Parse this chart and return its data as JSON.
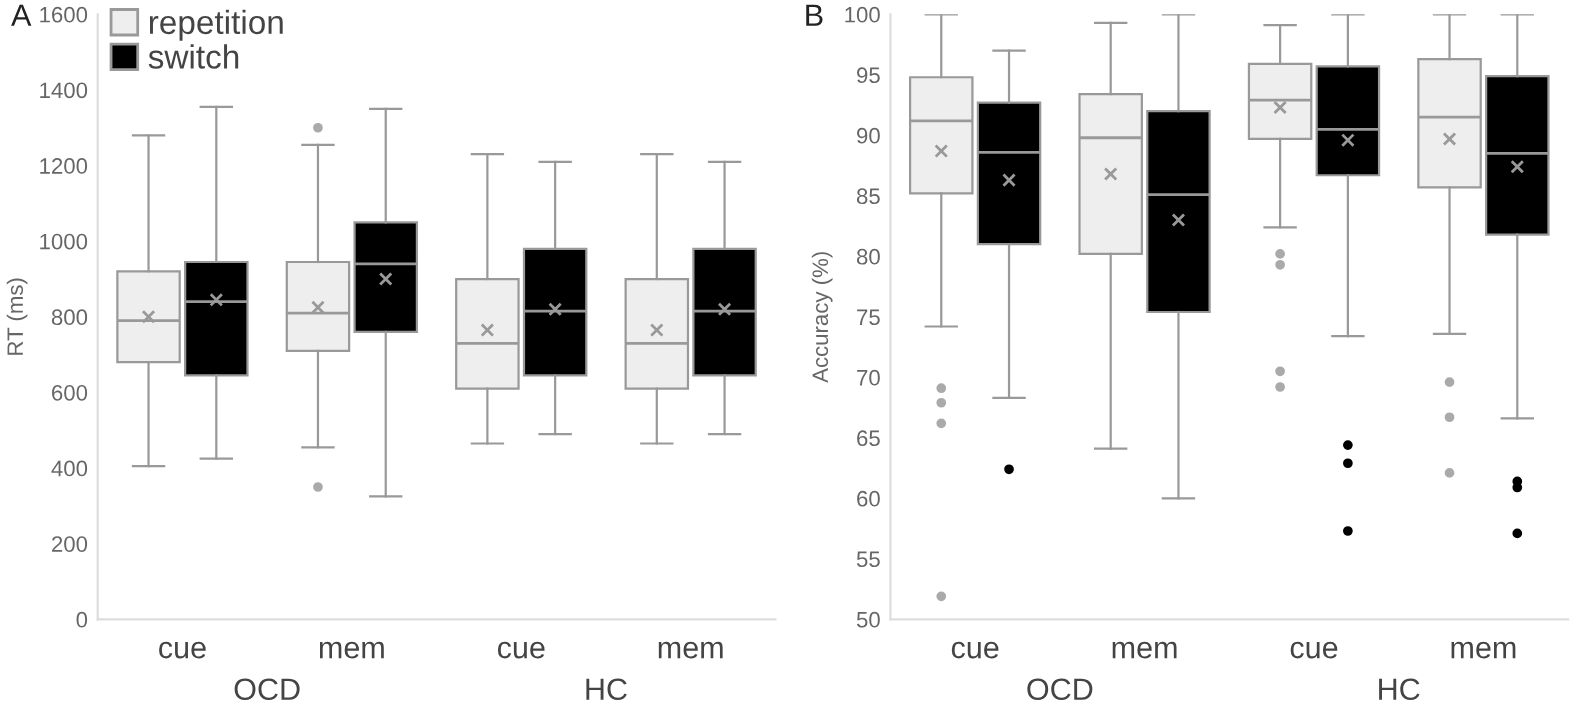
{
  "chart_data": [
    {
      "type": "box",
      "ylabel": "RT (ms)",
      "categories": [
        "cue",
        "mem",
        "cue",
        "mem"
      ],
      "ylim": [
        0,
        1600
      ],
      "yticks": [
        0,
        200,
        400,
        600,
        800,
        1000,
        1200,
        1400,
        1600
      ],
      "legend": "top left",
      "grid": false,
      "annotations": [
        "A",
        "OCD",
        "HC"
      ],
      "series": [
        {
          "name": "repetition",
          "color": "#eeeeee",
          "boxes": [
            {
              "low": 405,
              "q1": 680,
              "median": 790,
              "q3": 920,
              "high": 1280,
              "mean": 800
            },
            {
              "low": 455,
              "q1": 710,
              "median": 810,
              "q3": 945,
              "high": 1255,
              "mean": 825,
              "outliers": [
                1300,
                350
              ]
            },
            {
              "low": 465,
              "q1": 610,
              "median": 730,
              "q3": 900,
              "high": 1230,
              "mean": 765
            },
            {
              "low": 465,
              "q1": 610,
              "median": 730,
              "q3": 900,
              "high": 1230,
              "mean": 765
            }
          ]
        },
        {
          "name": "switch",
          "color": "#000000",
          "boxes": [
            {
              "low": 425,
              "q1": 645,
              "median": 840,
              "q3": 945,
              "high": 1355,
              "mean": 845
            },
            {
              "low": 325,
              "q1": 760,
              "median": 940,
              "q3": 1050,
              "high": 1350,
              "mean": 900
            },
            {
              "low": 490,
              "q1": 645,
              "median": 815,
              "q3": 980,
              "high": 1210,
              "mean": 820
            },
            {
              "low": 490,
              "q1": 645,
              "median": 815,
              "q3": 980,
              "high": 1210,
              "mean": 820
            }
          ]
        }
      ]
    },
    {
      "type": "box",
      "ylabel": "Accuracy (%)",
      "categories": [
        "cue",
        "mem",
        "cue",
        "mem"
      ],
      "ylim": [
        50,
        100
      ],
      "yticks": [
        50,
        55,
        60,
        65,
        70,
        75,
        80,
        85,
        90,
        95,
        100
      ],
      "grid": false,
      "annotations": [
        "B",
        "OCD",
        "HC"
      ],
      "series": [
        {
          "color": "#eeeeee",
          "boxes": [
            {
              "low": 74.2,
              "q1": 85.2,
              "median": 91.2,
              "q3": 94.8,
              "high": 100,
              "mean": 88.7,
              "outliers": [
                69.1,
                67.9,
                66.2,
                51.9
              ]
            },
            {
              "low": 64.1,
              "q1": 80.2,
              "median": 89.8,
              "q3": 93.4,
              "high": 99.3,
              "mean": 86.8
            },
            {
              "low": 82.4,
              "q1": 89.7,
              "median": 92.9,
              "q3": 95.9,
              "high": 99.1,
              "mean": 92.3,
              "outliers": [
                80.2,
                79.3,
                70.5,
                69.2
              ]
            },
            {
              "low": 73.6,
              "q1": 85.7,
              "median": 91.5,
              "q3": 96.3,
              "high": 100,
              "mean": 89.7,
              "outliers": [
                69.6,
                66.7,
                62.1
              ]
            }
          ]
        },
        {
          "color": "#000000",
          "boxes": [
            {
              "low": 68.3,
              "q1": 81.0,
              "median": 88.6,
              "q3": 92.7,
              "high": 97.0,
              "mean": 86.3,
              "outliers": [
                62.4
              ]
            },
            {
              "low": 60.0,
              "q1": 75.4,
              "median": 85.1,
              "q3": 92.0,
              "high": 100,
              "mean": 83.0
            },
            {
              "low": 73.4,
              "q1": 86.7,
              "median": 90.5,
              "q3": 95.7,
              "high": 100,
              "mean": 89.6,
              "outliers": [
                64.4,
                62.9,
                57.3
              ]
            },
            {
              "low": 66.6,
              "q1": 81.8,
              "median": 88.5,
              "q3": 94.9,
              "high": 100,
              "mean": 87.4,
              "outliers": [
                61.4,
                60.9,
                57.1
              ]
            }
          ]
        }
      ]
    }
  ]
}
